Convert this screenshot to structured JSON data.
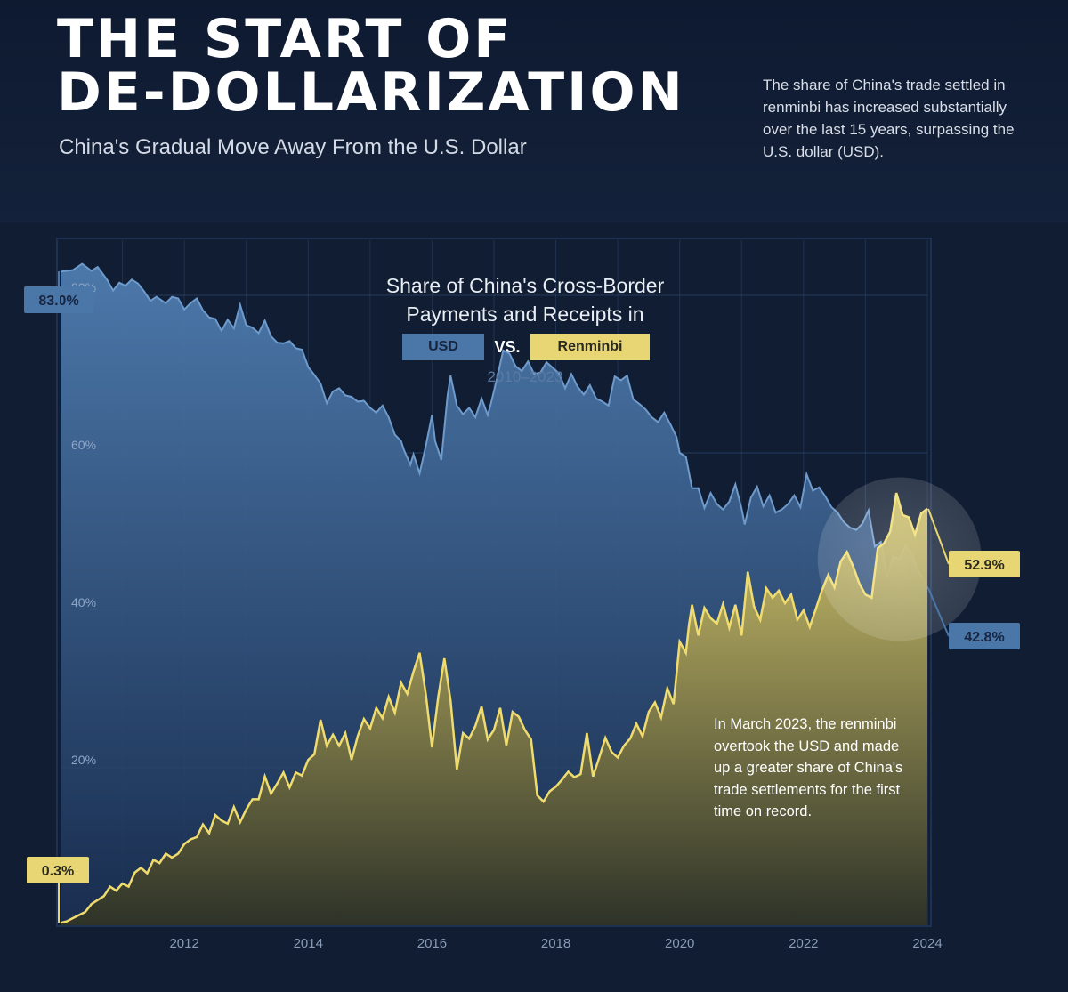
{
  "header": {
    "title": "THE START OF\nDE-DOLLARIZATION",
    "subtitle": "China's Gradual Move Away From the U.S. Dollar",
    "intro": "The share of China's trade settled in renminbi has increased substantially over the last 15 years, surpassing the U.S. dollar (USD)."
  },
  "annotation": "In March 2023, the renminbi overtook the USD and made up a greater share of China's trade settlements for the first time on record.",
  "colors": {
    "usd": "#4a77a8",
    "renminbi": "#e8d674",
    "background": "#101d33"
  },
  "chart_data": {
    "type": "area",
    "title": "Share of China's Cross-Border Payments and Receipts in",
    "legend": {
      "usd_label": "USD",
      "vs_label": "VS.",
      "rmb_label": "Renminbi"
    },
    "date_range": "2010–2023",
    "xlabel": "",
    "ylabel": "",
    "xlim": [
      2010.0,
      2024.0
    ],
    "ylim": [
      0,
      87
    ],
    "x_ticks": [
      2012,
      2014,
      2016,
      2018,
      2020,
      2022,
      2024
    ],
    "y_ticks": [
      20,
      40,
      60,
      80
    ],
    "y_tick_labels": [
      "20%",
      "40%",
      "60%",
      "80%"
    ],
    "grid": true,
    "series": [
      {
        "name": "USD",
        "points": [
          [
            2010.0,
            83.0
          ],
          [
            2010.2,
            83.2
          ],
          [
            2010.35,
            84.0
          ],
          [
            2010.5,
            83.1
          ],
          [
            2010.6,
            83.6
          ],
          [
            2010.75,
            82.0
          ],
          [
            2010.85,
            80.6
          ],
          [
            2010.95,
            81.6
          ],
          [
            2011.05,
            81.2
          ],
          [
            2011.15,
            82.0
          ],
          [
            2011.25,
            81.5
          ],
          [
            2011.35,
            80.5
          ],
          [
            2011.45,
            79.3
          ],
          [
            2011.55,
            79.8
          ],
          [
            2011.7,
            79.0
          ],
          [
            2011.8,
            79.8
          ],
          [
            2011.9,
            79.6
          ],
          [
            2012.0,
            78.2
          ],
          [
            2012.1,
            79.0
          ],
          [
            2012.2,
            79.6
          ],
          [
            2012.3,
            78.1
          ],
          [
            2012.4,
            77.2
          ],
          [
            2012.5,
            77.0
          ],
          [
            2012.6,
            75.5
          ],
          [
            2012.7,
            76.9
          ],
          [
            2012.8,
            75.8
          ],
          [
            2012.9,
            78.8
          ],
          [
            2013.0,
            76.2
          ],
          [
            2013.1,
            75.9
          ],
          [
            2013.2,
            75.2
          ],
          [
            2013.3,
            76.8
          ],
          [
            2013.4,
            74.8
          ],
          [
            2013.5,
            74.0
          ],
          [
            2013.6,
            73.9
          ],
          [
            2013.7,
            74.2
          ],
          [
            2013.8,
            73.3
          ],
          [
            2013.9,
            73.1
          ],
          [
            2014.0,
            70.9
          ],
          [
            2014.1,
            69.9
          ],
          [
            2014.2,
            68.8
          ],
          [
            2014.3,
            66.3
          ],
          [
            2014.4,
            67.8
          ],
          [
            2014.5,
            68.2
          ],
          [
            2014.6,
            67.3
          ],
          [
            2014.7,
            67.1
          ],
          [
            2014.8,
            66.5
          ],
          [
            2014.9,
            66.6
          ],
          [
            2015.0,
            65.7
          ],
          [
            2015.1,
            65.1
          ],
          [
            2015.2,
            66.0
          ],
          [
            2015.3,
            64.5
          ],
          [
            2015.4,
            62.3
          ],
          [
            2015.5,
            61.5
          ],
          [
            2015.55,
            60.3
          ],
          [
            2015.65,
            58.5
          ],
          [
            2015.7,
            59.8
          ],
          [
            2015.8,
            57.4
          ],
          [
            2015.9,
            60.9
          ],
          [
            2016.0,
            64.8
          ],
          [
            2016.05,
            61.5
          ],
          [
            2016.15,
            59.1
          ],
          [
            2016.25,
            67.2
          ],
          [
            2016.3,
            69.8
          ],
          [
            2016.4,
            66.0
          ],
          [
            2016.5,
            64.9
          ],
          [
            2016.6,
            65.7
          ],
          [
            2016.7,
            64.5
          ],
          [
            2016.8,
            66.9
          ],
          [
            2016.9,
            64.8
          ],
          [
            2016.95,
            66.2
          ],
          [
            2017.05,
            69.5
          ],
          [
            2017.15,
            73.0
          ],
          [
            2017.25,
            72.6
          ],
          [
            2017.35,
            71.0
          ],
          [
            2017.45,
            70.4
          ],
          [
            2017.55,
            71.6
          ],
          [
            2017.65,
            70.0
          ],
          [
            2017.75,
            70.2
          ],
          [
            2017.85,
            71.5
          ],
          [
            2017.95,
            70.8
          ],
          [
            2018.05,
            70.1
          ],
          [
            2018.15,
            68.2
          ],
          [
            2018.25,
            70.0
          ],
          [
            2018.35,
            68.4
          ],
          [
            2018.45,
            67.4
          ],
          [
            2018.55,
            68.6
          ],
          [
            2018.65,
            66.9
          ],
          [
            2018.75,
            66.5
          ],
          [
            2018.85,
            66.0
          ],
          [
            2018.95,
            69.7
          ],
          [
            2019.05,
            69.2
          ],
          [
            2019.15,
            69.8
          ],
          [
            2019.25,
            66.8
          ],
          [
            2019.35,
            66.2
          ],
          [
            2019.45,
            65.5
          ],
          [
            2019.55,
            64.5
          ],
          [
            2019.65,
            63.9
          ],
          [
            2019.75,
            65.1
          ],
          [
            2019.85,
            63.6
          ],
          [
            2019.95,
            62.0
          ],
          [
            2020.0,
            60.0
          ],
          [
            2020.1,
            59.5
          ],
          [
            2020.2,
            55.5
          ],
          [
            2020.3,
            55.5
          ],
          [
            2020.4,
            53.0
          ],
          [
            2020.5,
            54.9
          ],
          [
            2020.6,
            53.5
          ],
          [
            2020.7,
            52.8
          ],
          [
            2020.8,
            53.8
          ],
          [
            2020.9,
            56.0
          ],
          [
            2021.0,
            52.9
          ],
          [
            2021.05,
            50.9
          ],
          [
            2021.15,
            54.3
          ],
          [
            2021.25,
            55.7
          ],
          [
            2021.35,
            53.2
          ],
          [
            2021.45,
            54.6
          ],
          [
            2021.55,
            52.4
          ],
          [
            2021.65,
            52.8
          ],
          [
            2021.75,
            53.5
          ],
          [
            2021.85,
            54.6
          ],
          [
            2021.95,
            53.1
          ],
          [
            2022.05,
            57.3
          ],
          [
            2022.15,
            55.2
          ],
          [
            2022.25,
            55.6
          ],
          [
            2022.35,
            54.5
          ],
          [
            2022.45,
            53.1
          ],
          [
            2022.55,
            52.4
          ],
          [
            2022.65,
            51.2
          ],
          [
            2022.75,
            50.5
          ],
          [
            2022.85,
            50.2
          ],
          [
            2022.95,
            51.0
          ],
          [
            2023.05,
            52.7
          ],
          [
            2023.15,
            48.1
          ],
          [
            2023.25,
            48.7
          ],
          [
            2023.35,
            44.2
          ],
          [
            2023.45,
            46.8
          ],
          [
            2023.55,
            46.5
          ],
          [
            2023.65,
            48.2
          ],
          [
            2023.75,
            47.0
          ],
          [
            2023.85,
            45.0
          ],
          [
            2023.95,
            43.8
          ],
          [
            2024.0,
            42.8
          ]
        ]
      },
      {
        "name": "Renminbi",
        "points": [
          [
            2010.0,
            0.3
          ],
          [
            2010.1,
            0.5
          ],
          [
            2010.2,
            0.9
          ],
          [
            2010.3,
            1.3
          ],
          [
            2010.4,
            1.7
          ],
          [
            2010.5,
            2.7
          ],
          [
            2010.6,
            3.2
          ],
          [
            2010.7,
            3.7
          ],
          [
            2010.8,
            4.9
          ],
          [
            2010.9,
            4.4
          ],
          [
            2011.0,
            5.3
          ],
          [
            2011.1,
            4.9
          ],
          [
            2011.2,
            6.7
          ],
          [
            2011.3,
            7.3
          ],
          [
            2011.4,
            6.6
          ],
          [
            2011.5,
            8.3
          ],
          [
            2011.6,
            7.9
          ],
          [
            2011.7,
            9.1
          ],
          [
            2011.8,
            8.6
          ],
          [
            2011.9,
            9.1
          ],
          [
            2012.0,
            10.3
          ],
          [
            2012.1,
            10.9
          ],
          [
            2012.2,
            11.2
          ],
          [
            2012.3,
            12.8
          ],
          [
            2012.4,
            11.7
          ],
          [
            2012.5,
            14.0
          ],
          [
            2012.6,
            13.3
          ],
          [
            2012.7,
            12.9
          ],
          [
            2012.8,
            15.0
          ],
          [
            2012.9,
            13.1
          ],
          [
            2013.0,
            14.7
          ],
          [
            2013.1,
            16.0
          ],
          [
            2013.2,
            16.0
          ],
          [
            2013.3,
            18.9
          ],
          [
            2013.4,
            16.7
          ],
          [
            2013.5,
            18.0
          ],
          [
            2013.6,
            19.4
          ],
          [
            2013.7,
            17.5
          ],
          [
            2013.8,
            19.4
          ],
          [
            2013.9,
            19.0
          ],
          [
            2014.0,
            21.0
          ],
          [
            2014.1,
            21.7
          ],
          [
            2014.2,
            26.1
          ],
          [
            2014.3,
            22.8
          ],
          [
            2014.4,
            24.2
          ],
          [
            2014.5,
            22.8
          ],
          [
            2014.6,
            24.4
          ],
          [
            2014.7,
            21.0
          ],
          [
            2014.8,
            24.0
          ],
          [
            2014.9,
            26.2
          ],
          [
            2015.0,
            25.0
          ],
          [
            2015.1,
            27.6
          ],
          [
            2015.2,
            26.3
          ],
          [
            2015.3,
            29.0
          ],
          [
            2015.4,
            27.0
          ],
          [
            2015.5,
            30.8
          ],
          [
            2015.6,
            29.4
          ],
          [
            2015.7,
            32.2
          ],
          [
            2015.8,
            34.6
          ],
          [
            2015.9,
            29.3
          ],
          [
            2016.0,
            22.6
          ],
          [
            2016.1,
            29.0
          ],
          [
            2016.2,
            33.9
          ],
          [
            2016.3,
            28.5
          ],
          [
            2016.4,
            19.8
          ],
          [
            2016.5,
            24.4
          ],
          [
            2016.6,
            23.7
          ],
          [
            2016.7,
            25.3
          ],
          [
            2016.8,
            27.8
          ],
          [
            2016.9,
            23.6
          ],
          [
            2017.0,
            24.8
          ],
          [
            2017.1,
            27.6
          ],
          [
            2017.2,
            22.8
          ],
          [
            2017.3,
            27.1
          ],
          [
            2017.4,
            26.5
          ],
          [
            2017.5,
            24.8
          ],
          [
            2017.6,
            23.6
          ],
          [
            2017.7,
            16.5
          ],
          [
            2017.8,
            15.7
          ],
          [
            2017.9,
            17.0
          ],
          [
            2018.0,
            17.6
          ],
          [
            2018.1,
            18.5
          ],
          [
            2018.2,
            19.5
          ],
          [
            2018.3,
            18.8
          ],
          [
            2018.4,
            19.2
          ],
          [
            2018.5,
            24.4
          ],
          [
            2018.6,
            18.9
          ],
          [
            2018.7,
            21.3
          ],
          [
            2018.8,
            23.8
          ],
          [
            2018.9,
            22.0
          ],
          [
            2019.0,
            21.3
          ],
          [
            2019.1,
            22.8
          ],
          [
            2019.2,
            23.7
          ],
          [
            2019.3,
            25.6
          ],
          [
            2019.4,
            24.0
          ],
          [
            2019.5,
            27.1
          ],
          [
            2019.6,
            28.3
          ],
          [
            2019.7,
            26.4
          ],
          [
            2019.8,
            30.1
          ],
          [
            2019.9,
            28.1
          ],
          [
            2020.0,
            36.0
          ],
          [
            2020.1,
            34.6
          ],
          [
            2020.15,
            38.2
          ],
          [
            2020.2,
            40.7
          ],
          [
            2020.3,
            36.8
          ],
          [
            2020.4,
            40.3
          ],
          [
            2020.5,
            39.0
          ],
          [
            2020.6,
            38.3
          ],
          [
            2020.7,
            40.8
          ],
          [
            2020.8,
            37.8
          ],
          [
            2020.9,
            40.7
          ],
          [
            2021.0,
            36.8
          ],
          [
            2021.1,
            44.9
          ],
          [
            2021.2,
            40.5
          ],
          [
            2021.3,
            38.8
          ],
          [
            2021.4,
            42.8
          ],
          [
            2021.5,
            41.6
          ],
          [
            2021.6,
            42.5
          ],
          [
            2021.7,
            40.9
          ],
          [
            2021.8,
            42.0
          ],
          [
            2021.9,
            38.8
          ],
          [
            2022.0,
            40.0
          ],
          [
            2022.1,
            37.9
          ],
          [
            2022.2,
            40.2
          ],
          [
            2022.3,
            42.6
          ],
          [
            2022.4,
            44.5
          ],
          [
            2022.5,
            42.9
          ],
          [
            2022.6,
            46.2
          ],
          [
            2022.7,
            47.4
          ],
          [
            2022.8,
            45.6
          ],
          [
            2022.9,
            43.4
          ],
          [
            2023.0,
            42.0
          ],
          [
            2023.1,
            41.6
          ],
          [
            2023.2,
            47.9
          ],
          [
            2023.3,
            48.5
          ],
          [
            2023.4,
            50.0
          ],
          [
            2023.5,
            54.9
          ],
          [
            2023.6,
            52.1
          ],
          [
            2023.7,
            51.8
          ],
          [
            2023.8,
            49.6
          ],
          [
            2023.9,
            52.3
          ],
          [
            2024.0,
            52.9
          ]
        ]
      }
    ],
    "callouts": {
      "usd_start": "83.0%",
      "rmb_start": "0.3%",
      "rmb_end": "52.9%",
      "usd_end": "42.8%"
    }
  }
}
